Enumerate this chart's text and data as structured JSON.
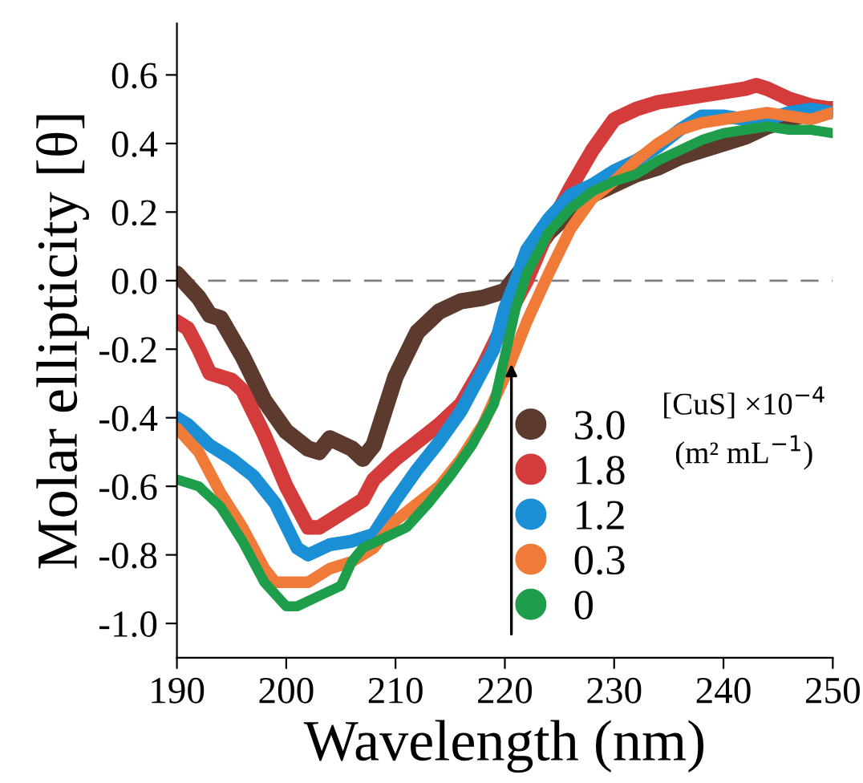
{
  "chart_data": {
    "type": "line",
    "xlabel": "Wavelength (nm)",
    "ylabel": "Molar ellipticity [θ]",
    "legend_title": "[CuS] ×10$^{−4}$\n(m² mL$^{−1}$)",
    "xlim": [
      190,
      250
    ],
    "xticks": [
      190,
      200,
      210,
      220,
      230,
      240,
      250
    ],
    "ylim": [
      -1.1,
      0.75
    ],
    "yticks": [
      {
        "value": -1.0,
        "label": "-1.0"
      },
      {
        "value": -0.8,
        "label": "-0.8"
      },
      {
        "value": -0.6,
        "label": "-0.6"
      },
      {
        "value": -0.4,
        "label": "-0.4"
      },
      {
        "value": -0.2,
        "label": "-0.2"
      },
      {
        "value": 0.0,
        "label": "0.0"
      },
      {
        "value": 0.2,
        "label": "0.2"
      },
      {
        "value": 0.4,
        "label": "0.4"
      },
      {
        "value": 0.6,
        "label": "0.6"
      }
    ],
    "grid": false,
    "legend": "bottom right",
    "marker": "none",
    "line_style": "solid",
    "ref_lines": [
      {
        "axis": "y",
        "value": 0,
        "color": "#808080",
        "line_style": "dashed"
      }
    ],
    "series": [
      {
        "name": "3.0",
        "color": "#5c3a2e",
        "x": [
          190,
          192,
          193,
          194,
          196,
          198,
          200,
          202,
          203,
          204,
          206,
          207,
          208,
          209,
          210,
          212,
          214,
          216,
          218,
          220,
          222,
          224,
          226,
          228,
          230,
          232,
          234,
          236,
          238,
          240,
          242,
          244,
          246,
          248,
          250
        ],
        "values": [
          0.02,
          -0.05,
          -0.1,
          -0.11,
          -0.22,
          -0.35,
          -0.44,
          -0.49,
          -0.5,
          -0.46,
          -0.49,
          -0.52,
          -0.48,
          -0.38,
          -0.28,
          -0.15,
          -0.09,
          -0.06,
          -0.05,
          -0.03,
          0.05,
          0.14,
          0.2,
          0.25,
          0.28,
          0.31,
          0.33,
          0.36,
          0.38,
          0.4,
          0.42,
          0.45,
          0.47,
          0.49,
          0.5
        ]
      },
      {
        "name": "1.8",
        "color": "#d43c3c",
        "x": [
          190,
          191,
          192,
          193,
          195,
          196,
          198,
          200,
          202,
          203,
          205,
          207,
          208,
          210,
          212,
          214,
          216,
          218,
          220,
          222,
          224,
          226,
          228,
          230,
          232,
          234,
          236,
          238,
          240,
          242,
          243,
          244,
          246,
          248,
          250
        ],
        "values": [
          -0.12,
          -0.14,
          -0.2,
          -0.27,
          -0.29,
          -0.32,
          -0.45,
          -0.6,
          -0.72,
          -0.72,
          -0.68,
          -0.64,
          -0.58,
          -0.52,
          -0.47,
          -0.42,
          -0.36,
          -0.25,
          -0.12,
          0.0,
          0.15,
          0.27,
          0.38,
          0.47,
          0.5,
          0.52,
          0.53,
          0.54,
          0.55,
          0.56,
          0.57,
          0.56,
          0.53,
          0.51,
          0.5
        ]
      },
      {
        "name": "1.2",
        "color": "#1a8fd6",
        "x": [
          190,
          191,
          193,
          195,
          197,
          199,
          201,
          202,
          204,
          206,
          208,
          210,
          212,
          214,
          216,
          218,
          219,
          220,
          221,
          222,
          224,
          226,
          228,
          230,
          232,
          234,
          236,
          238,
          240,
          242,
          244,
          246,
          248,
          250
        ],
        "values": [
          -0.4,
          -0.42,
          -0.48,
          -0.52,
          -0.57,
          -0.65,
          -0.78,
          -0.8,
          -0.77,
          -0.76,
          -0.74,
          -0.64,
          -0.55,
          -0.47,
          -0.38,
          -0.26,
          -0.2,
          -0.08,
          0.0,
          0.09,
          0.18,
          0.25,
          0.28,
          0.32,
          0.35,
          0.39,
          0.44,
          0.48,
          0.48,
          0.47,
          0.47,
          0.49,
          0.5,
          0.49
        ]
      },
      {
        "name": "0.3",
        "color": "#f07a38",
        "x": [
          190,
          192,
          194,
          196,
          198,
          199,
          202,
          204,
          206,
          208,
          210,
          212,
          214,
          216,
          218,
          220,
          222,
          224,
          226,
          228,
          230,
          232,
          234,
          236,
          238,
          240,
          242,
          244,
          246,
          248,
          250
        ],
        "values": [
          -0.43,
          -0.5,
          -0.62,
          -0.72,
          -0.84,
          -0.88,
          -0.88,
          -0.84,
          -0.82,
          -0.78,
          -0.7,
          -0.65,
          -0.6,
          -0.52,
          -0.42,
          -0.28,
          -0.12,
          0.02,
          0.15,
          0.24,
          0.29,
          0.35,
          0.4,
          0.44,
          0.46,
          0.47,
          0.48,
          0.49,
          0.48,
          0.47,
          0.49
        ]
      },
      {
        "name": "0",
        "color": "#1e9e4a",
        "x": [
          190,
          192,
          194,
          196,
          198,
          200,
          201,
          203,
          205,
          206,
          207,
          209,
          211,
          213,
          215,
          217,
          219,
          220,
          221,
          222,
          224,
          226,
          228,
          230,
          232,
          234,
          236,
          238,
          240,
          242,
          244,
          246,
          248,
          250
        ],
        "values": [
          -0.58,
          -0.6,
          -0.66,
          -0.76,
          -0.88,
          -0.95,
          -0.95,
          -0.92,
          -0.89,
          -0.82,
          -0.78,
          -0.75,
          -0.72,
          -0.65,
          -0.57,
          -0.48,
          -0.36,
          -0.22,
          -0.08,
          0.02,
          0.14,
          0.21,
          0.26,
          0.29,
          0.31,
          0.35,
          0.38,
          0.41,
          0.43,
          0.44,
          0.45,
          0.44,
          0.44,
          0.43
        ]
      }
    ]
  }
}
